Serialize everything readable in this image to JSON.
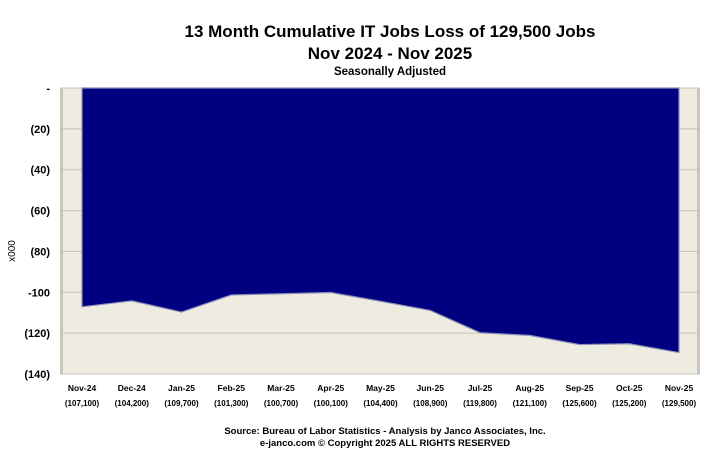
{
  "chart_data": {
    "type": "area",
    "title": "13 Month Cumulative IT Jobs Loss of 129,500 Jobs",
    "subtitle_line": "Nov 2024 - Nov 2025",
    "subtitle": "Seasonally  Adjusted",
    "ylabel": "x000",
    "ylim": [
      -140,
      0
    ],
    "yticks": [
      {
        "value": 0,
        "label": "-"
      },
      {
        "value": -20,
        "label": "(20)"
      },
      {
        "value": -40,
        "label": "(40)"
      },
      {
        "value": -60,
        "label": "(60)"
      },
      {
        "value": -80,
        "label": "(80)"
      },
      {
        "value": -100,
        "label": "-100"
      },
      {
        "value": -120,
        "label": "(120)"
      },
      {
        "value": -140,
        "label": "(140)"
      }
    ],
    "categories": [
      "Nov-24",
      "Dec-24",
      "Jan-25",
      "Feb-25",
      "Mar-25",
      "Apr-25",
      "May-25",
      "Jun-25",
      "Jul-25",
      "Aug-25",
      "Sep-25",
      "Oct-25",
      "Nov-25"
    ],
    "value_labels": [
      "(107,100)",
      "(104,200)",
      "(109,700)",
      "(101,300)",
      "(100,700)",
      "(100,100)",
      "(104,400)",
      "(108,900)",
      "(119,800)",
      "(121,100)",
      "(125,600)",
      "(125,200)",
      "(129,500)"
    ],
    "values": [
      -107.1,
      -104.2,
      -109.7,
      -101.3,
      -100.7,
      -100.1,
      -104.4,
      -108.9,
      -119.8,
      -121.1,
      -125.6,
      -125.2,
      -129.5
    ],
    "grid": true,
    "colors": {
      "area": "#000080",
      "plot_bg": "#eeebe0",
      "grid": "#c4c1b6"
    }
  },
  "footer": {
    "source": "Source: Bureau of Labor Statistics - Analysis by Janco Associates, Inc.",
    "copyright": "e-janco.com © Copyright 2025  ALL RIGHTS RESERVED"
  }
}
